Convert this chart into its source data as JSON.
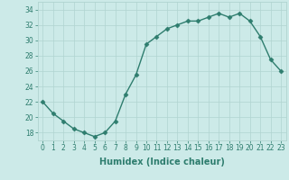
{
  "x": [
    0,
    1,
    2,
    3,
    4,
    5,
    6,
    7,
    8,
    9,
    10,
    11,
    12,
    13,
    14,
    15,
    16,
    17,
    18,
    19,
    20,
    21,
    22,
    23
  ],
  "y": [
    22,
    20.5,
    19.5,
    18.5,
    18,
    17.5,
    18,
    19.5,
    23,
    25.5,
    29.5,
    30.5,
    31.5,
    32,
    32.5,
    32.5,
    33,
    33.5,
    33,
    33.5,
    32.5,
    30.5,
    27.5,
    26
  ],
  "line_color": "#2e7d6e",
  "marker": "D",
  "markersize": 2.5,
  "linewidth": 1.0,
  "background_color": "#cceae8",
  "grid_color": "#b0d4d0",
  "xlabel": "Humidex (Indice chaleur)",
  "xlabel_fontsize": 7,
  "xlabel_weight": "bold",
  "ytick_labels": [
    "18",
    "20",
    "22",
    "24",
    "26",
    "28",
    "30",
    "32",
    "34"
  ],
  "ytick_values": [
    18,
    20,
    22,
    24,
    26,
    28,
    30,
    32,
    34
  ],
  "xtick_values": [
    0,
    1,
    2,
    3,
    4,
    5,
    6,
    7,
    8,
    9,
    10,
    11,
    12,
    13,
    14,
    15,
    16,
    17,
    18,
    19,
    20,
    21,
    22,
    23
  ],
  "ylim": [
    17.0,
    35.0
  ],
  "xlim": [
    -0.5,
    23.5
  ],
  "tick_fontsize": 5.5,
  "tick_color": "#2e7d6e"
}
